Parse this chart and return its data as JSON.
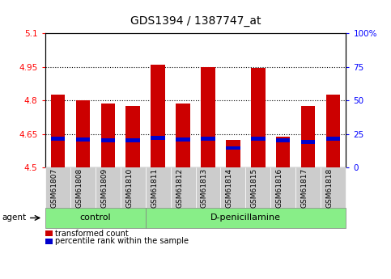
{
  "title": "GDS1394 / 1387747_at",
  "samples": [
    "GSM61807",
    "GSM61808",
    "GSM61809",
    "GSM61810",
    "GSM61811",
    "GSM61812",
    "GSM61813",
    "GSM61814",
    "GSM61815",
    "GSM61816",
    "GSM61817",
    "GSM61818"
  ],
  "red_values": [
    4.825,
    4.8,
    4.785,
    4.775,
    4.96,
    4.785,
    4.95,
    4.622,
    4.947,
    4.637,
    4.775,
    4.825
  ],
  "blue_top": [
    4.638,
    4.635,
    4.632,
    4.63,
    4.642,
    4.635,
    4.638,
    4.596,
    4.638,
    4.63,
    4.622,
    4.638
  ],
  "blue_bottom": [
    4.62,
    4.617,
    4.614,
    4.612,
    4.622,
    4.617,
    4.62,
    4.578,
    4.62,
    4.612,
    4.604,
    4.62
  ],
  "bar_bottom": 4.5,
  "ylim_left": [
    4.5,
    5.1
  ],
  "ylim_right": [
    0,
    100
  ],
  "yticks_left": [
    4.5,
    4.65,
    4.8,
    4.95,
    5.1
  ],
  "yticks_right": [
    0,
    25,
    50,
    75,
    100
  ],
  "ytick_labels_left": [
    "4.5",
    "4.65",
    "4.8",
    "4.95",
    "5.1"
  ],
  "ytick_labels_right": [
    "0",
    "25",
    "50",
    "75",
    "100%"
  ],
  "gridlines": [
    4.65,
    4.8,
    4.95
  ],
  "group1_label": "control",
  "group2_label": "D-penicillamine",
  "group1_count": 4,
  "group2_count": 8,
  "agent_label": "agent",
  "legend1": "transformed count",
  "legend2": "percentile rank within the sample",
  "red_color": "#cc0000",
  "blue_color": "#0000cc",
  "group_bg_color": "#88ee88",
  "sample_bg_color": "#cccccc",
  "bar_width": 0.55,
  "tick_fontsize": 7.5,
  "sample_fontsize": 6.5,
  "title_fontsize": 10,
  "group_fontsize": 8,
  "legend_fontsize": 7
}
